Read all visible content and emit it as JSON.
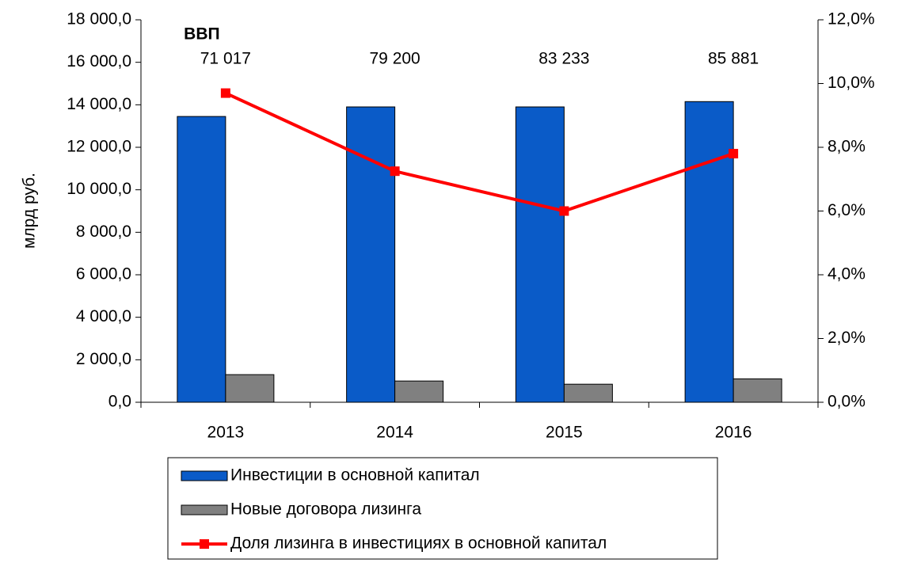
{
  "chart_data": {
    "type": "bar",
    "categories": [
      "2013",
      "2014",
      "2015",
      "2016"
    ],
    "y_label": "млрд руб.",
    "series": [
      {
        "name": "Инвестиции в основной капитал",
        "type": "bar",
        "color": "#0a5bc8",
        "values": [
          13450,
          13900,
          13900,
          14150
        ]
      },
      {
        "name": "Новые договора лизинга",
        "type": "bar",
        "color": "#808080",
        "values": [
          1300,
          1000,
          850,
          1100
        ]
      },
      {
        "name": "Доля лизинга в инвестициях в основной капитал",
        "type": "line",
        "axis": "y2",
        "color": "#ff0000",
        "values": [
          9.7,
          7.25,
          6.0,
          7.8
        ]
      }
    ],
    "annotation_title": "ВВП",
    "annotations": [
      "71 017",
      "79 200",
      "83 233",
      "85 881"
    ],
    "ylim": [
      0,
      18000
    ],
    "yticks": [
      {
        "value": 0,
        "label": "0,0"
      },
      {
        "value": 2000,
        "label": "2 000,0"
      },
      {
        "value": 4000,
        "label": "4 000,0"
      },
      {
        "value": 6000,
        "label": "6 000,0"
      },
      {
        "value": 8000,
        "label": "8 000,0"
      },
      {
        "value": 10000,
        "label": "10 000,0"
      },
      {
        "value": 12000,
        "label": "12 000,0"
      },
      {
        "value": 14000,
        "label": "14 000,0"
      },
      {
        "value": 16000,
        "label": "16 000,0"
      },
      {
        "value": 18000,
        "label": "18 000,0"
      }
    ],
    "y2lim": [
      0,
      12
    ],
    "y2ticks": [
      {
        "value": 0,
        "label": "0,0%"
      },
      {
        "value": 2,
        "label": "2,0%"
      },
      {
        "value": 4,
        "label": "4,0%"
      },
      {
        "value": 6,
        "label": "6,0%"
      },
      {
        "value": 8,
        "label": "8,0%"
      },
      {
        "value": 10,
        "label": "10,0%"
      },
      {
        "value": 12,
        "label": "12,0%"
      }
    ],
    "grid": false,
    "legend": "bottom"
  }
}
